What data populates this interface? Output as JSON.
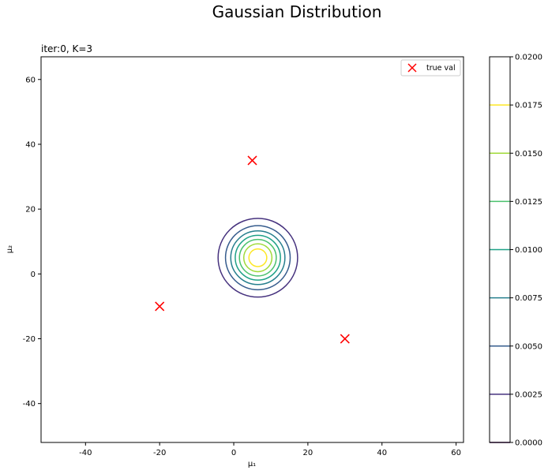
{
  "figure": {
    "suptitle": "Gaussian Distribution"
  },
  "chart_data": {
    "type": "contour",
    "title": "iter:0, K=3",
    "xlabel": "μ₁",
    "ylabel": "μ₂",
    "xlim": [
      -52,
      62
    ],
    "ylim": [
      -52,
      67
    ],
    "xticks": [
      -40,
      -20,
      0,
      20,
      40,
      60
    ],
    "yticks": [
      -40,
      -20,
      0,
      20,
      40,
      60
    ],
    "grid": false,
    "legend": {
      "placement": "top-right",
      "entries": [
        {
          "label": "true val",
          "marker": "x",
          "color": "#ff0000"
        }
      ]
    },
    "scatter": {
      "name": "true val",
      "color": "#ff0000",
      "marker": "x",
      "points": [
        {
          "x": 5,
          "y": 35
        },
        {
          "x": -20,
          "y": -10
        },
        {
          "x": 30,
          "y": -20
        }
      ]
    },
    "gaussian": {
      "mean": [
        6.5,
        5.0
      ],
      "std": [
        5.3,
        6.0
      ],
      "peak": 0.0194
    },
    "contour_levels": [
      0.0025,
      0.005,
      0.0075,
      0.01,
      0.0125,
      0.015,
      0.0175
    ],
    "colormap": "viridis",
    "colorbar": {
      "min": 0.0,
      "max": 0.02,
      "ticks": [
        "0.0000",
        "0.0025",
        "0.0050",
        "0.0075",
        "0.0100",
        "0.0125",
        "0.0150",
        "0.0175",
        "0.0200"
      ],
      "level_colors": [
        "#440154",
        "#46327e",
        "#365c8d",
        "#277f8e",
        "#1fa187",
        "#4ac16d",
        "#a0da39",
        "#fde725"
      ]
    }
  }
}
